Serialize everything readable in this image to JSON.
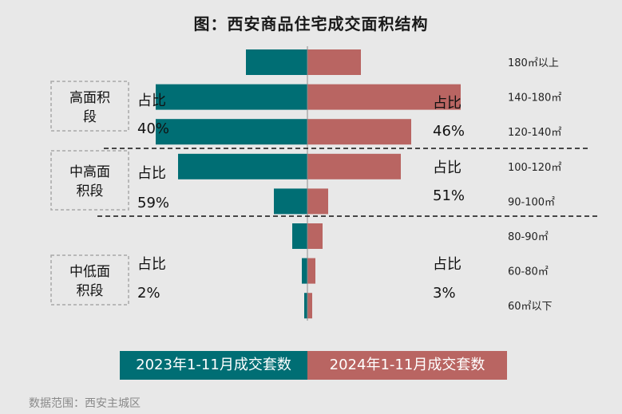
{
  "title": "图：西安商品住宅成交面积结构",
  "source": "数据范围：西安主城区",
  "colors": {
    "series_2023": "#006e74",
    "series_2024": "#b96562",
    "segment_border": "#a8a8a8"
  },
  "legend": {
    "series_2023": "2023年1-11月成交套数",
    "series_2024": "2024年1-11月成交套数"
  },
  "segments": [
    {
      "label": "高面积段",
      "label_line1": "高面积",
      "label_line2": "段",
      "share_label": "占比",
      "share_2023": "40%",
      "share_2024": "46%"
    },
    {
      "label": "中高面积段",
      "label_line1": "中高面",
      "label_line2": "积段",
      "share_label": "占比",
      "share_2023": "59%",
      "share_2024": "51%"
    },
    {
      "label": "中低面积段",
      "label_line1": "中低面",
      "label_line2": "积段",
      "share_label": "占比",
      "share_2023": "2%",
      "share_2024": "3%"
    }
  ],
  "chart_data": {
    "type": "bar",
    "orientation": "horizontal-butterfly",
    "categories": [
      "180㎡以上",
      "140-180㎡",
      "120-140㎡",
      "100-120㎡",
      "90-100㎡",
      "80-90㎡",
      "60-80㎡",
      "60㎡以下"
    ],
    "series": [
      {
        "name": "2023年1-11月成交套数",
        "values": [
          77,
          190,
          190,
          162,
          42,
          19,
          7,
          4
        ]
      },
      {
        "name": "2024年1-11月成交套数",
        "values": [
          67,
          192,
          130,
          117,
          26,
          19,
          10,
          6
        ]
      }
    ],
    "axis_visible": false,
    "grid": false,
    "legend_position": "bottom"
  }
}
